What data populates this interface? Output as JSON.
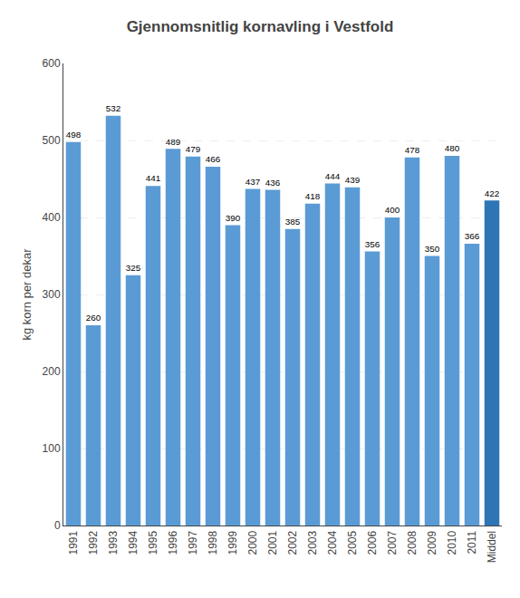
{
  "chart_data": {
    "type": "bar",
    "title": "Gjennomsnitlig kornavling i Vestfold",
    "ylabel": "kg korn per dekar",
    "categories": [
      "1991",
      "1992",
      "1993",
      "1994",
      "1995",
      "1996",
      "1997",
      "1998",
      "1999",
      "2000",
      "2001",
      "2002",
      "2003",
      "2004",
      "2005",
      "2006",
      "2007",
      "2008",
      "2009",
      "2010",
      "2011",
      "Middel"
    ],
    "values": [
      498,
      260,
      532,
      325,
      441,
      489,
      479,
      466,
      390,
      437,
      436,
      385,
      418,
      444,
      439,
      356,
      400,
      478,
      350,
      480,
      366,
      422
    ],
    "colors": [
      "#5B9BD5",
      "#5B9BD5",
      "#5B9BD5",
      "#5B9BD5",
      "#5B9BD5",
      "#5B9BD5",
      "#5B9BD5",
      "#5B9BD5",
      "#5B9BD5",
      "#5B9BD5",
      "#5B9BD5",
      "#5B9BD5",
      "#5B9BD5",
      "#5B9BD5",
      "#5B9BD5",
      "#5B9BD5",
      "#5B9BD5",
      "#5B9BD5",
      "#5B9BD5",
      "#5B9BD5",
      "#5B9BD5",
      "#2E75B6"
    ],
    "ylim": [
      0,
      600
    ],
    "yticks": [
      0,
      100,
      200,
      300,
      400,
      500,
      600
    ],
    "grid": true,
    "data_labels": true
  }
}
